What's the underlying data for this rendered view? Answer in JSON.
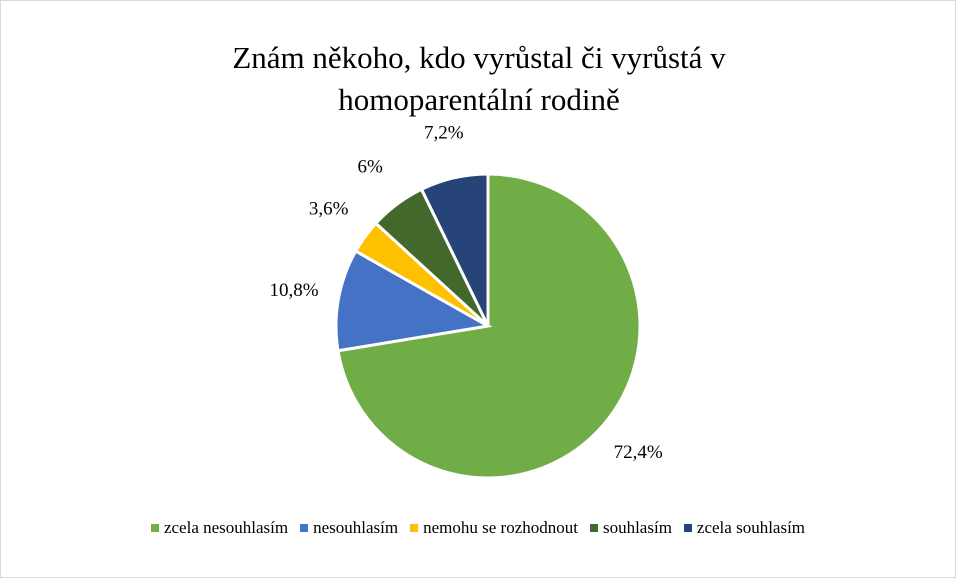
{
  "chart_data": {
    "type": "pie",
    "title": "Znám někoho, kdo vyrůstal či vyrůstá v homoparentální rodině",
    "categories": [
      "zcela nesouhlasím",
      "nesouhlasím",
      "nemohu se rozhodnout",
      "souhlasím",
      "zcela souhlasím"
    ],
    "values": [
      72.4,
      10.8,
      3.6,
      6,
      7.2
    ],
    "value_labels": [
      "72,4%",
      "10,8%",
      "3,6%",
      "6%",
      "7,2%"
    ],
    "colors": [
      "#70ad47",
      "#4472c4",
      "#ffc000",
      "#43682b",
      "#264478"
    ],
    "legend": "bottom"
  }
}
